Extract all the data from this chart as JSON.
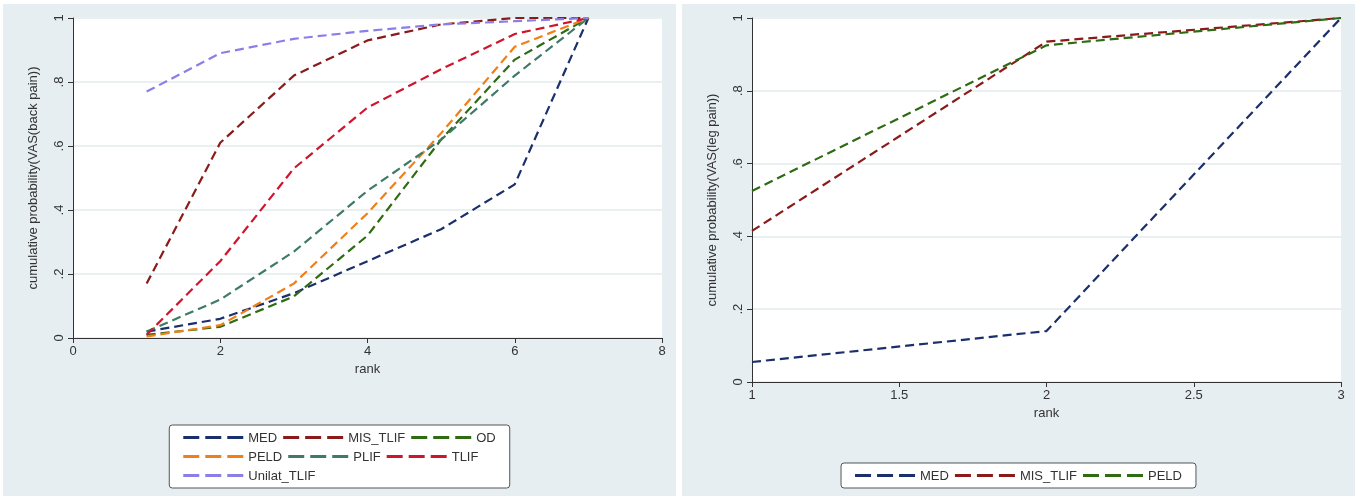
{
  "chart_data": [
    {
      "type": "line",
      "xlabel": "rank",
      "ylabel": "cumulative probability(VAS(back pain))",
      "x": [
        1,
        2,
        3,
        4,
        5,
        6,
        7
      ],
      "xlim": [
        0,
        8
      ],
      "xticks": [
        0,
        2,
        4,
        6,
        8
      ],
      "ylim": [
        0,
        1
      ],
      "yticks": [
        {
          "value": 0,
          "label": "0"
        },
        {
          "value": 0.2,
          "label": ".2"
        },
        {
          "value": 0.4,
          "label": ".4"
        },
        {
          "value": 0.6,
          "label": ".6"
        },
        {
          "value": 0.8,
          "label": ".8"
        },
        {
          "value": 1,
          "label": "1"
        }
      ],
      "grid": "y",
      "legend": "bottom",
      "marker": "none",
      "line_style": "dashed",
      "series": [
        {
          "name": "MED",
          "color": "#1a2f6b",
          "values": [
            0.02,
            0.06,
            0.14,
            0.24,
            0.34,
            0.48,
            1
          ]
        },
        {
          "name": "MIS_TLIF",
          "color": "#8b1a1a",
          "values": [
            0.17,
            0.61,
            0.82,
            0.93,
            0.98,
            1,
            1
          ]
        },
        {
          "name": "OD",
          "color": "#2e6b12",
          "values": [
            0.01,
            0.035,
            0.13,
            0.32,
            0.62,
            0.87,
            1
          ]
        },
        {
          "name": "PELD",
          "color": "#f07f1a",
          "values": [
            0.005,
            0.04,
            0.17,
            0.39,
            0.64,
            0.91,
            1
          ]
        },
        {
          "name": "PLIF",
          "color": "#3f7a68",
          "values": [
            0.02,
            0.12,
            0.27,
            0.46,
            0.62,
            0.82,
            1
          ]
        },
        {
          "name": "TLIF",
          "color": "#d0142c",
          "values": [
            0.01,
            0.24,
            0.53,
            0.72,
            0.84,
            0.95,
            1
          ]
        },
        {
          "name": "Unilat_TLIF",
          "color": "#8a7ee8",
          "values": [
            0.77,
            0.89,
            0.935,
            0.96,
            0.98,
            0.99,
            1
          ]
        }
      ]
    },
    {
      "type": "line",
      "xlabel": "rank",
      "ylabel": "cumulative probability(VAS(leg pain))",
      "x": [
        1,
        2,
        3
      ],
      "xlim": [
        1,
        3
      ],
      "xticks": [
        1,
        1.5,
        2,
        2.5,
        3
      ],
      "ylim": [
        0,
        1
      ],
      "yticks": [
        {
          "value": 0,
          "label": "0"
        },
        {
          "value": 0.2,
          "label": ".2"
        },
        {
          "value": 0.4,
          "label": ".4"
        },
        {
          "value": 0.6,
          "label": ".6"
        },
        {
          "value": 0.8,
          "label": ".8"
        },
        {
          "value": 1,
          "label": "1"
        }
      ],
      "grid": "y",
      "legend": "bottom",
      "marker": "none",
      "line_style": "dashed",
      "series": [
        {
          "name": "MED",
          "color": "#1a2f6b",
          "values": [
            0.055,
            0.14,
            1
          ]
        },
        {
          "name": "MIS_TLIF",
          "color": "#8b1a1a",
          "values": [
            0.415,
            0.935,
            1
          ]
        },
        {
          "name": "PELD",
          "color": "#2e6b12",
          "values": [
            0.525,
            0.925,
            1
          ]
        }
      ]
    }
  ]
}
